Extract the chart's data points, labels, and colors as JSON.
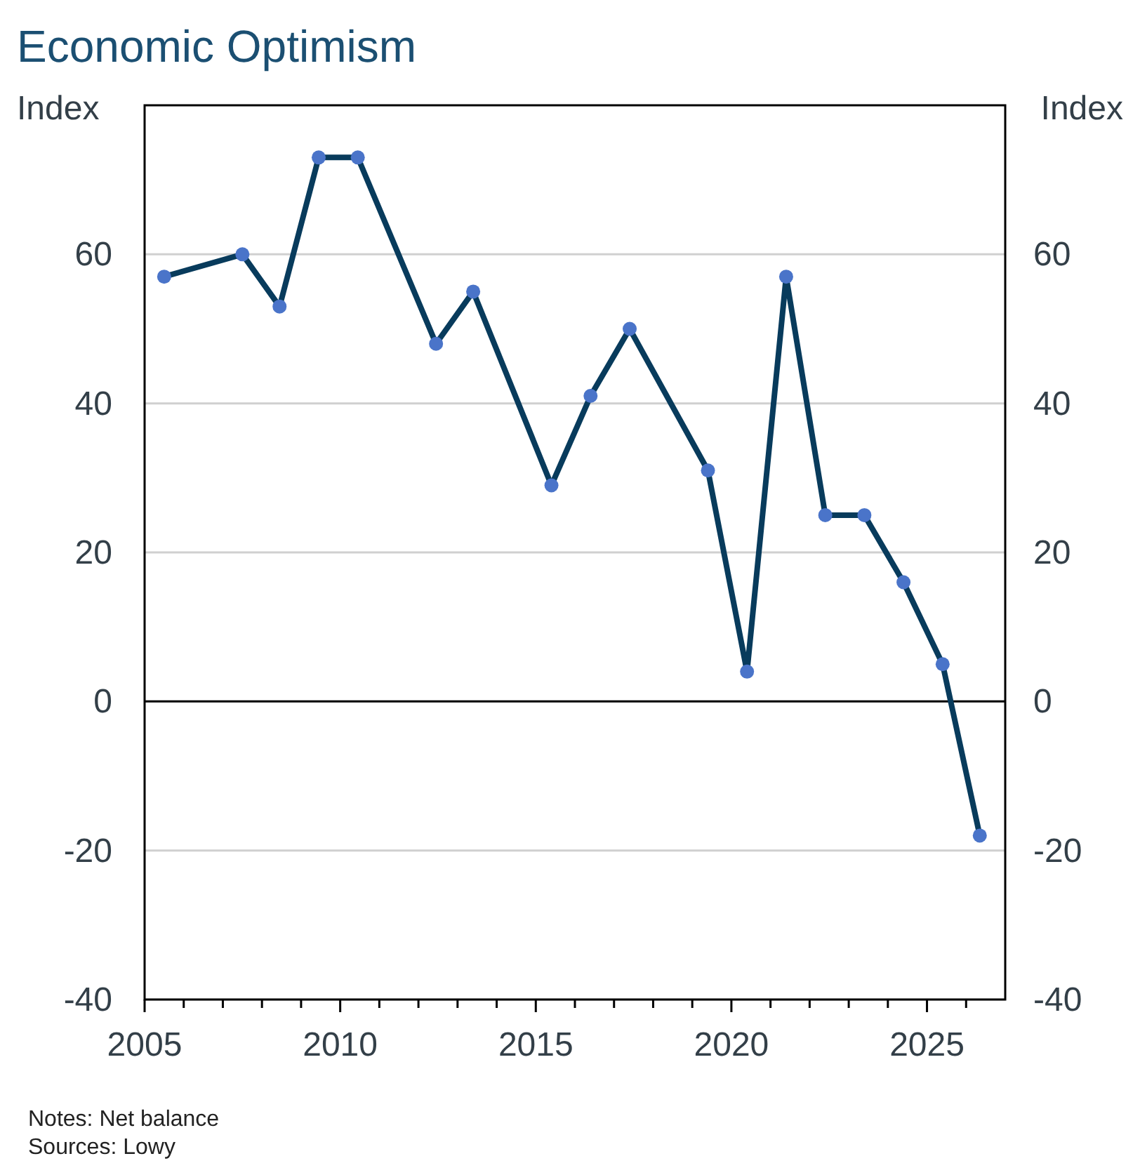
{
  "chart_data": {
    "type": "line",
    "title": "Economic Optimism",
    "ylabel": "Index",
    "y2label": "Index",
    "x": [
      2005.5,
      2007.5,
      2008.45,
      2009.45,
      2010.45,
      2012.45,
      2013.4,
      2015.4,
      2016.4,
      2017.4,
      2019.4,
      2020.4,
      2021.4,
      2022.4,
      2023.4,
      2024.4,
      2025.4,
      2026.35
    ],
    "series": [
      {
        "color": "#083b5c",
        "values": [
          57,
          60,
          53,
          73,
          73,
          48,
          55,
          29,
          41,
          50,
          31,
          4,
          57,
          25,
          25,
          16,
          5,
          -18
        ]
      }
    ],
    "xlim": [
      2005,
      2027
    ],
    "xticks": [
      2005,
      {
        "value": 2006,
        "label": null
      },
      {
        "value": 2007,
        "label": null
      },
      {
        "value": 2008,
        "label": null
      },
      {
        "value": 2009,
        "label": null
      },
      2010,
      {
        "value": 2011,
        "label": null
      },
      {
        "value": 2012,
        "label": null
      },
      {
        "value": 2013,
        "label": null
      },
      {
        "value": 2014,
        "label": null
      },
      2015,
      {
        "value": 2016,
        "label": null
      },
      {
        "value": 2017,
        "label": null
      },
      {
        "value": 2018,
        "label": null
      },
      {
        "value": 2019,
        "label": null
      },
      2020,
      {
        "value": 2021,
        "label": null
      },
      {
        "value": 2022,
        "label": null
      },
      {
        "value": 2023,
        "label": null
      },
      {
        "value": 2024,
        "label": null
      },
      2025,
      {
        "value": 2026,
        "label": null
      }
    ],
    "ylim": [
      -40,
      80
    ],
    "yticks": [
      -40,
      -20,
      0,
      20,
      40,
      60
    ],
    "y2lim": [
      -40,
      80
    ],
    "y2ticks": [
      -40,
      -20,
      0,
      20,
      40,
      60
    ],
    "grid": "y",
    "marker": "circle",
    "line_style": "solid",
    "ref_lines": [
      {
        "axis": "y",
        "value": 0,
        "color": "#000000"
      }
    ],
    "annotations": [
      "Notes: Net balance",
      "Sources: Lowy"
    ]
  }
}
